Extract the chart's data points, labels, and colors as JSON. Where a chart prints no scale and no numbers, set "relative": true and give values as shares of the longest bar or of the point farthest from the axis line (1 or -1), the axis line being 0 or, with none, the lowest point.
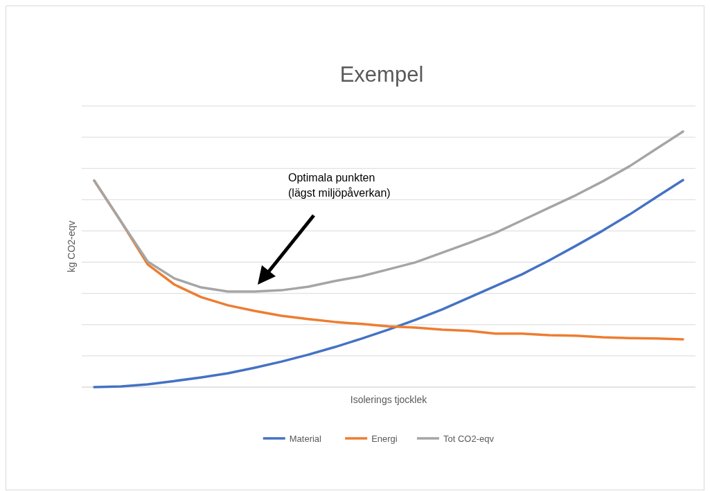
{
  "chart_data": {
    "type": "line",
    "title": "Exempel",
    "xlabel": "Isolerings tjocklek",
    "ylabel": "kg CO2-eqv",
    "relative": true,
    "grid": "y",
    "legend": "bottom",
    "line_style": "solid",
    "categories": [
      null,
      null,
      null,
      null,
      null,
      null,
      null,
      null,
      null,
      null,
      null,
      null,
      null,
      null,
      null,
      null,
      null,
      null,
      null,
      null,
      null,
      null,
      null
    ],
    "series": [
      {
        "name": "Material",
        "color": "#4472c4",
        "values": [
          0,
          0.003,
          0.011,
          0.024,
          0.038,
          0.054,
          0.076,
          0.1,
          0.127,
          0.157,
          0.19,
          0.225,
          0.263,
          0.304,
          0.35,
          0.396,
          0.442,
          0.496,
          0.553,
          0.612,
          0.675,
          0.743,
          0.81
        ]
      },
      {
        "name": "Energi",
        "color": "#ed7d31",
        "values": [
          0.808,
          0.648,
          0.48,
          0.401,
          0.352,
          0.32,
          0.298,
          0.279,
          0.266,
          0.255,
          0.247,
          0.238,
          0.233,
          0.225,
          0.22,
          0.209,
          0.209,
          0.203,
          0.201,
          0.195,
          0.192,
          0.19,
          0.187
        ]
      },
      {
        "name": "Tot CO2-eqv",
        "color": "#a5a5a5",
        "values": [
          0.808,
          0.648,
          0.491,
          0.425,
          0.39,
          0.374,
          0.374,
          0.379,
          0.393,
          0.415,
          0.434,
          0.461,
          0.488,
          0.526,
          0.564,
          0.604,
          0.653,
          0.702,
          0.751,
          0.805,
          0.864,
          0.932,
          1
        ]
      }
    ],
    "annotations": [
      "Optimala punkten\n(lägst miljöpåverkan)"
    ]
  }
}
